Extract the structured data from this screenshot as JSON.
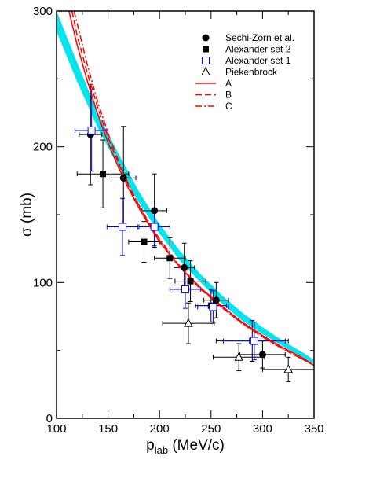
{
  "chart_data": {
    "type": "scatter",
    "title": "",
    "xlabel": {
      "main": "p",
      "sub": "lab",
      "rest": " (MeV/c)"
    },
    "ylabel": "σ (mb)",
    "xlim": [
      100,
      350
    ],
    "ylim": [
      0,
      300
    ],
    "x_ticks": [
      100,
      150,
      200,
      250,
      300,
      350
    ],
    "x_tick_labels": [
      "100",
      "150",
      "200",
      "250",
      "300",
      "350"
    ],
    "y_ticks": [
      0,
      100,
      200,
      300
    ],
    "y_tick_labels": [
      "0",
      "100",
      "200",
      "300"
    ],
    "legend_position": "top-right",
    "colors": {
      "band": "#00e5ee",
      "curves": "#ff0000",
      "alexander1": "#0000ff",
      "black": "#000000"
    },
    "band": {
      "x": [
        100,
        120,
        140,
        160,
        180,
        200,
        220,
        240,
        260,
        280,
        300,
        320,
        340,
        350
      ],
      "y_low": [
        285,
        248,
        214,
        185,
        159,
        136,
        116,
        100,
        85,
        72,
        62,
        53,
        44,
        40
      ],
      "y_high": [
        300,
        262,
        225,
        195,
        167,
        143,
        123,
        106,
        91,
        78,
        67,
        57,
        48,
        43
      ]
    },
    "series": [
      {
        "name": "Sechi-Zorn et al.",
        "marker": "filled-circle",
        "points": [
          {
            "x": 133,
            "y": 209,
            "xerr": 11,
            "yerr": 37
          },
          {
            "x": 165,
            "y": 177,
            "xerr": 12,
            "yerr": 38
          },
          {
            "x": 195,
            "y": 153,
            "xerr": 12,
            "yerr": 27
          },
          {
            "x": 224,
            "y": 111,
            "xerr": 10,
            "yerr": 18
          },
          {
            "x": 255,
            "y": 87,
            "xerr": 12,
            "yerr": 13
          },
          {
            "x": 300,
            "y": 47,
            "xerr": 22,
            "yerr": 10
          }
        ]
      },
      {
        "name": "Alexander set 2",
        "marker": "filled-square",
        "points": [
          {
            "x": 145,
            "y": 180,
            "xerr": 25,
            "yerr": 25
          },
          {
            "x": 185,
            "y": 130,
            "xerr": 15,
            "yerr": 15
          },
          {
            "x": 210,
            "y": 118,
            "xerr": 15,
            "yerr": 15
          },
          {
            "x": 230,
            "y": 101,
            "xerr": 15,
            "yerr": 15
          },
          {
            "x": 250,
            "y": 83,
            "xerr": 15,
            "yerr": 12
          },
          {
            "x": 290,
            "y": 57,
            "xerr": 35,
            "yerr": 15
          }
        ]
      },
      {
        "name": "Alexander set 1",
        "marker": "open-square",
        "points": [
          {
            "x": 134,
            "y": 212,
            "xerr": 16,
            "yerr": 30
          },
          {
            "x": 164,
            "y": 141,
            "xerr": 15,
            "yerr": 21
          },
          {
            "x": 195,
            "y": 141,
            "xerr": 15,
            "yerr": 14
          },
          {
            "x": 225,
            "y": 95,
            "xerr": 15,
            "yerr": 14
          },
          {
            "x": 252,
            "y": 82,
            "xerr": 15,
            "yerr": 12
          },
          {
            "x": 292,
            "y": 57,
            "xerr": 30,
            "yerr": 14
          }
        ]
      },
      {
        "name": "Piekenbrock",
        "marker": "open-triangle",
        "points": [
          {
            "x": 228,
            "y": 70,
            "xerr": 25,
            "yerr": 15
          },
          {
            "x": 277,
            "y": 45,
            "xerr": 25,
            "yerr": 10
          },
          {
            "x": 325,
            "y": 36,
            "xerr": 25,
            "yerr": 9
          }
        ]
      }
    ],
    "curves": [
      {
        "name": "A",
        "style": "solid",
        "x": [
          112,
          120,
          130,
          140,
          150,
          160,
          170,
          180,
          190,
          200,
          220,
          240,
          260,
          280,
          300,
          320,
          340,
          350
        ],
        "y": [
          300,
          275,
          248,
          224,
          203,
          185,
          169,
          155,
          142,
          130,
          111,
          96,
          83,
          71,
          61,
          52,
          44,
          39
        ]
      },
      {
        "name": "B",
        "style": "dashed",
        "x": [
          115,
          120,
          130,
          140,
          150,
          160,
          170,
          180,
          190,
          200,
          220,
          240,
          260,
          280,
          300,
          320,
          340,
          350
        ],
        "y": [
          300,
          282,
          254,
          229,
          207,
          188,
          171,
          156,
          143,
          131,
          111,
          95,
          82,
          70,
          60,
          51,
          43,
          39
        ]
      },
      {
        "name": "C",
        "style": "dash-dot",
        "x": [
          117,
          120,
          130,
          140,
          150,
          160,
          170,
          180,
          190,
          200,
          220,
          240,
          260,
          280,
          300,
          320,
          340,
          350
        ],
        "y": [
          300,
          291,
          260,
          233,
          210,
          190,
          172,
          157,
          144,
          132,
          112,
          96,
          82,
          70,
          60,
          51,
          43,
          39
        ]
      }
    ]
  }
}
